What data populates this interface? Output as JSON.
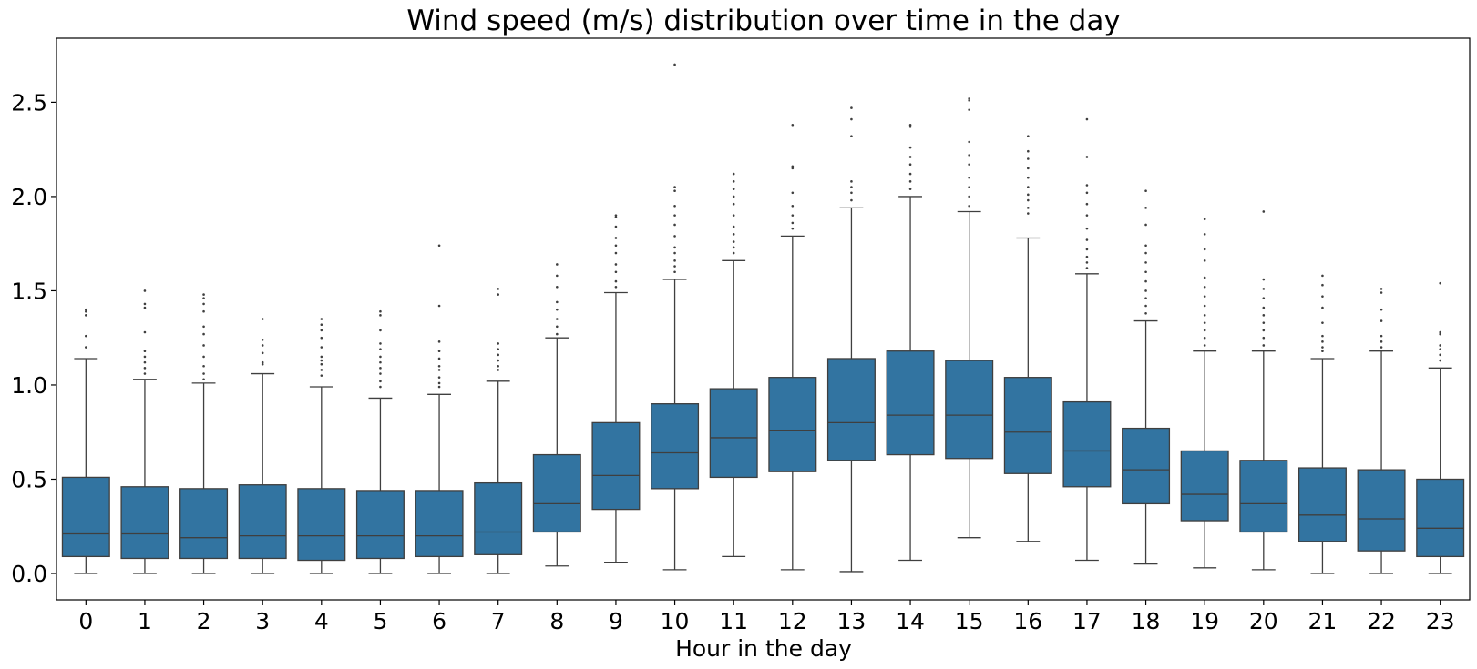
{
  "chart_data": {
    "type": "box",
    "title": "Wind speed (m/s) distribution over time in the day",
    "xlabel": "Hour in the day",
    "ylabel": "",
    "ylim": [
      -0.14,
      2.84
    ],
    "yticks": [
      "0.0",
      "0.5",
      "1.0",
      "1.5",
      "2.0",
      "2.5"
    ],
    "box_color": "#3274a1",
    "line_color": "#3f3f3f",
    "grid": false,
    "categories": [
      "0",
      "1",
      "2",
      "3",
      "4",
      "5",
      "6",
      "7",
      "8",
      "9",
      "10",
      "11",
      "12",
      "13",
      "14",
      "15",
      "16",
      "17",
      "18",
      "19",
      "20",
      "21",
      "22",
      "23"
    ],
    "boxes": [
      {
        "whislo": 0.0,
        "q1": 0.09,
        "med": 0.21,
        "q3": 0.51,
        "whishi": 1.14,
        "fliers": [
          1.2,
          1.26,
          1.37,
          1.39,
          1.4
        ]
      },
      {
        "whislo": 0.0,
        "q1": 0.08,
        "med": 0.21,
        "q3": 0.46,
        "whishi": 1.03,
        "fliers": [
          1.06,
          1.09,
          1.12,
          1.15,
          1.18,
          1.28,
          1.41,
          1.43,
          1.5
        ]
      },
      {
        "whislo": 0.0,
        "q1": 0.08,
        "med": 0.19,
        "q3": 0.45,
        "whishi": 1.01,
        "fliers": [
          1.03,
          1.06,
          1.1,
          1.15,
          1.21,
          1.27,
          1.31,
          1.39,
          1.43,
          1.46,
          1.48
        ]
      },
      {
        "whislo": 0.0,
        "q1": 0.08,
        "med": 0.2,
        "q3": 0.47,
        "whishi": 1.06,
        "fliers": [
          1.11,
          1.12,
          1.17,
          1.21,
          1.24,
          1.35
        ]
      },
      {
        "whislo": 0.0,
        "q1": 0.07,
        "med": 0.2,
        "q3": 0.45,
        "whishi": 0.99,
        "fliers": [
          1.05,
          1.08,
          1.11,
          1.13,
          1.15,
          1.2,
          1.25,
          1.29,
          1.32,
          1.35
        ]
      },
      {
        "whislo": 0.0,
        "q1": 0.08,
        "med": 0.2,
        "q3": 0.44,
        "whishi": 0.93,
        "fliers": [
          0.99,
          1.02,
          1.06,
          1.09,
          1.12,
          1.15,
          1.19,
          1.22,
          1.29,
          1.37,
          1.39
        ]
      },
      {
        "whislo": 0.0,
        "q1": 0.09,
        "med": 0.2,
        "q3": 0.44,
        "whishi": 0.95,
        "fliers": [
          0.99,
          1.01,
          1.04,
          1.08,
          1.1,
          1.14,
          1.18,
          1.23,
          1.42,
          1.74
        ]
      },
      {
        "whislo": 0.0,
        "q1": 0.1,
        "med": 0.22,
        "q3": 0.48,
        "whishi": 1.02,
        "fliers": [
          1.08,
          1.1,
          1.13,
          1.16,
          1.19,
          1.22,
          1.48,
          1.51
        ]
      },
      {
        "whislo": 0.04,
        "q1": 0.22,
        "med": 0.37,
        "q3": 0.63,
        "whishi": 1.25,
        "fliers": [
          1.27,
          1.31,
          1.35,
          1.4,
          1.44,
          1.52,
          1.58,
          1.64
        ]
      },
      {
        "whislo": 0.06,
        "q1": 0.34,
        "med": 0.52,
        "q3": 0.8,
        "whishi": 1.49,
        "fliers": [
          1.52,
          1.55,
          1.6,
          1.64,
          1.7,
          1.74,
          1.78,
          1.84,
          1.89,
          1.9
        ]
      },
      {
        "whislo": 0.02,
        "q1": 0.45,
        "med": 0.64,
        "q3": 0.9,
        "whishi": 1.56,
        "fliers": [
          1.6,
          1.63,
          1.66,
          1.7,
          1.73,
          1.79,
          1.85,
          1.9,
          1.95,
          2.03,
          2.05,
          2.7
        ]
      },
      {
        "whislo": 0.09,
        "q1": 0.51,
        "med": 0.72,
        "q3": 0.98,
        "whishi": 1.66,
        "fliers": [
          1.7,
          1.73,
          1.76,
          1.8,
          1.84,
          1.9,
          1.96,
          2.0,
          2.04,
          2.08,
          2.12
        ]
      },
      {
        "whislo": 0.02,
        "q1": 0.54,
        "med": 0.76,
        "q3": 1.04,
        "whishi": 1.79,
        "fliers": [
          1.83,
          1.86,
          1.9,
          1.95,
          2.02,
          2.15,
          2.16,
          2.38
        ]
      },
      {
        "whislo": 0.01,
        "q1": 0.6,
        "med": 0.8,
        "q3": 1.14,
        "whishi": 1.94,
        "fliers": [
          1.98,
          2.02,
          2.05,
          2.08,
          2.32,
          2.41,
          2.47
        ]
      },
      {
        "whislo": 0.07,
        "q1": 0.63,
        "med": 0.84,
        "q3": 1.18,
        "whishi": 2.0,
        "fliers": [
          2.04,
          2.08,
          2.12,
          2.17,
          2.21,
          2.26,
          2.37,
          2.38
        ]
      },
      {
        "whislo": 0.19,
        "q1": 0.61,
        "med": 0.84,
        "q3": 1.13,
        "whishi": 1.92,
        "fliers": [
          1.95,
          2.0,
          2.05,
          2.1,
          2.17,
          2.22,
          2.29,
          2.46,
          2.51,
          2.52
        ]
      },
      {
        "whislo": 0.17,
        "q1": 0.53,
        "med": 0.75,
        "q3": 1.04,
        "whishi": 1.78,
        "fliers": [
          1.91,
          1.94,
          1.98,
          2.01,
          2.05,
          2.1,
          2.15,
          2.2,
          2.24,
          2.32
        ]
      },
      {
        "whislo": 0.07,
        "q1": 0.46,
        "med": 0.65,
        "q3": 0.91,
        "whishi": 1.59,
        "fliers": [
          1.62,
          1.65,
          1.68,
          1.72,
          1.77,
          1.83,
          1.9,
          1.96,
          2.02,
          2.06,
          2.21,
          2.41
        ]
      },
      {
        "whislo": 0.05,
        "q1": 0.37,
        "med": 0.55,
        "q3": 0.77,
        "whishi": 1.34,
        "fliers": [
          1.38,
          1.42,
          1.46,
          1.5,
          1.55,
          1.6,
          1.65,
          1.7,
          1.74,
          1.85,
          1.94,
          2.03
        ]
      },
      {
        "whislo": 0.03,
        "q1": 0.28,
        "med": 0.42,
        "q3": 0.65,
        "whishi": 1.18,
        "fliers": [
          1.21,
          1.25,
          1.29,
          1.33,
          1.37,
          1.42,
          1.47,
          1.52,
          1.57,
          1.66,
          1.72,
          1.8,
          1.88
        ]
      },
      {
        "whislo": 0.02,
        "q1": 0.22,
        "med": 0.37,
        "q3": 0.6,
        "whishi": 1.18,
        "fliers": [
          1.21,
          1.25,
          1.29,
          1.33,
          1.37,
          1.41,
          1.46,
          1.51,
          1.56,
          1.92
        ]
      },
      {
        "whislo": 0.0,
        "q1": 0.17,
        "med": 0.31,
        "q3": 0.56,
        "whishi": 1.14,
        "fliers": [
          1.18,
          1.2,
          1.23,
          1.26,
          1.33,
          1.41,
          1.47,
          1.53,
          1.58
        ]
      },
      {
        "whislo": 0.0,
        "q1": 0.12,
        "med": 0.29,
        "q3": 0.55,
        "whishi": 1.18,
        "fliers": [
          1.2,
          1.23,
          1.26,
          1.34,
          1.4,
          1.49,
          1.51
        ]
      },
      {
        "whislo": 0.0,
        "q1": 0.09,
        "med": 0.24,
        "q3": 0.5,
        "whishi": 1.09,
        "fliers": [
          1.13,
          1.16,
          1.19,
          1.21,
          1.27,
          1.28,
          1.54
        ]
      }
    ]
  }
}
